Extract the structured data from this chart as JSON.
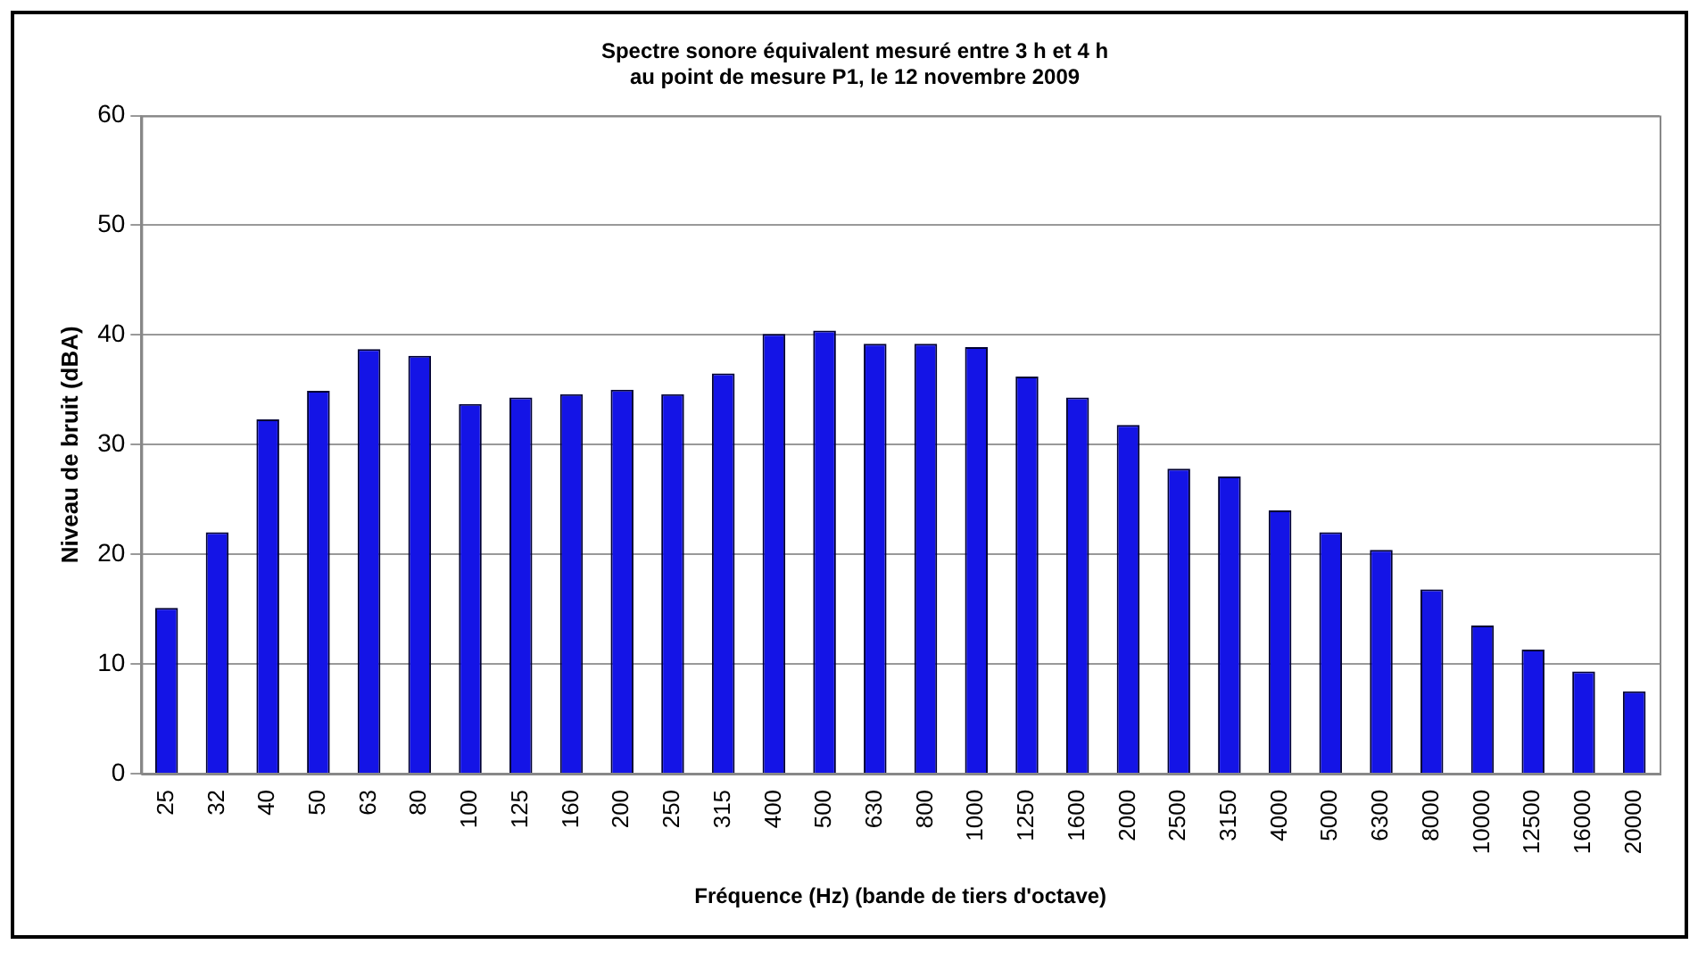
{
  "chart_data": {
    "type": "bar",
    "title": "Spectre sonore équivalent mesuré entre 3 h et 4 h\nau point de mesure P1, le 12 novembre 2009",
    "xlabel": "Fréquence (Hz) (bande de tiers d'octave)",
    "ylabel": "Niveau de bruit (dBA)",
    "categories": [
      "25",
      "32",
      "40",
      "50",
      "63",
      "80",
      "100",
      "125",
      "160",
      "200",
      "250",
      "315",
      "400",
      "500",
      "630",
      "800",
      "1000",
      "1250",
      "1600",
      "2000",
      "2500",
      "3150",
      "4000",
      "5000",
      "6300",
      "8000",
      "10000",
      "12500",
      "16000",
      "20000"
    ],
    "values": [
      15.1,
      22,
      32.3,
      34.9,
      38.7,
      38.1,
      33.7,
      34.3,
      34.6,
      35,
      34.6,
      36.5,
      40.1,
      40.4,
      39.2,
      39.2,
      38.9,
      36.2,
      34.3,
      31.8,
      27.8,
      27.1,
      24,
      22,
      20.4,
      16.8,
      13.5,
      11.3,
      9.3,
      7.5
    ],
    "color": "#1414e6",
    "ylim": [
      0,
      60
    ],
    "yticks": [
      0,
      10,
      20,
      30,
      40,
      50,
      60
    ],
    "grid": "y",
    "legend": false
  }
}
